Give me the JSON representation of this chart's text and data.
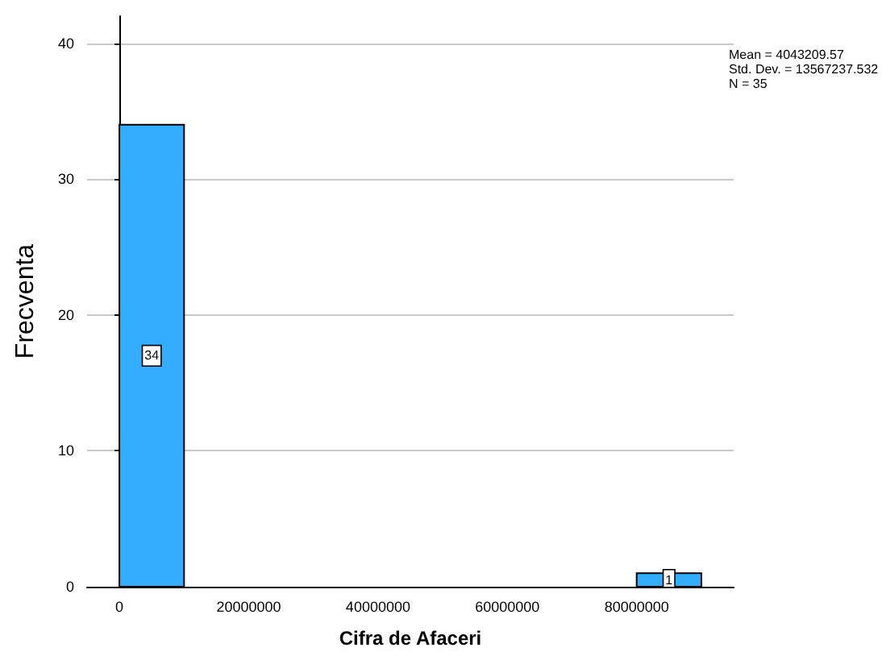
{
  "chart_data": {
    "type": "histogram",
    "xlabel": "Cifra de Afaceri",
    "ylabel": "Frecventa",
    "bins": [
      0,
      10000000,
      20000000,
      30000000,
      40000000,
      50000000,
      60000000,
      70000000,
      80000000,
      90000000
    ],
    "values": [
      34,
      0,
      0,
      0,
      0,
      0,
      0,
      0,
      1
    ],
    "value_labels": [
      "34",
      null,
      null,
      null,
      null,
      null,
      null,
      null,
      "1"
    ],
    "color": "#33adff",
    "xlim": [
      -5000000,
      95000000
    ],
    "xticks": [
      0,
      20000000,
      40000000,
      60000000,
      80000000
    ],
    "ylim": [
      0,
      42
    ],
    "yticks": [
      0,
      10,
      20,
      30,
      40
    ],
    "grid": "y",
    "annotations": [
      "Mean = 4043209.57",
      "Std. Dev. = 13567237.532",
      "N = 35"
    ]
  }
}
